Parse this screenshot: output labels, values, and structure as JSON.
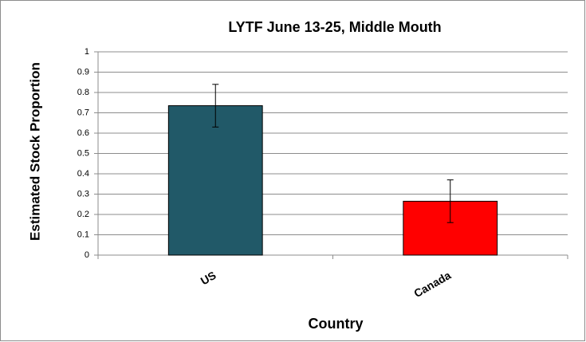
{
  "chart_data": {
    "type": "bar",
    "title": "LYTF  June 13-25, Middle Mouth",
    "x_label": "Country",
    "y_label": "Estimated Stock Proportion",
    "categories": [
      "US",
      "Canada"
    ],
    "values": [
      0.735,
      0.265
    ],
    "errors": [
      0.105,
      0.105
    ],
    "colors": [
      "#215968",
      "#ff0000"
    ],
    "ylim": [
      0,
      1
    ],
    "yticks": [
      0,
      0.1,
      0.2,
      0.3,
      0.4,
      0.5,
      0.6,
      0.7,
      0.8,
      0.9,
      1
    ],
    "grid": true
  }
}
